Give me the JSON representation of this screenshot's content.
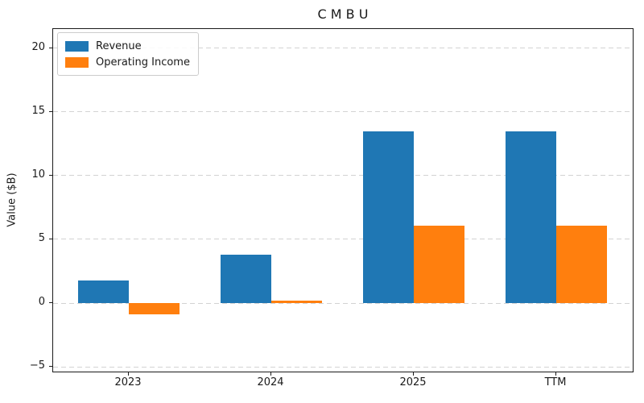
{
  "figure": {
    "title": "C M B U",
    "ylabel": "Value ($B)"
  },
  "chart_data": {
    "type": "bar",
    "title": "C M B U",
    "xlabel": "",
    "ylabel": "Value ($B)",
    "categories": [
      "2023",
      "2024",
      "2025",
      "TTM"
    ],
    "series": [
      {
        "name": "Revenue",
        "color": "#1f77b4",
        "values": [
          1.8,
          3.8,
          13.5,
          13.5
        ]
      },
      {
        "name": "Operating Income",
        "color": "#ff7f0e",
        "values": [
          -0.9,
          0.2,
          6.1,
          6.1
        ]
      }
    ],
    "yticks": [
      -5,
      0,
      5,
      10,
      15,
      20
    ],
    "ylim": [
      -5.5,
      21.5
    ],
    "grid": "horizontal-dashed",
    "legend_position": "upper-left",
    "colors": {
      "grid": "#d3d3d3",
      "spine": "#1a1a1a",
      "text": "#1a1a1a",
      "background": "#ffffff"
    }
  }
}
